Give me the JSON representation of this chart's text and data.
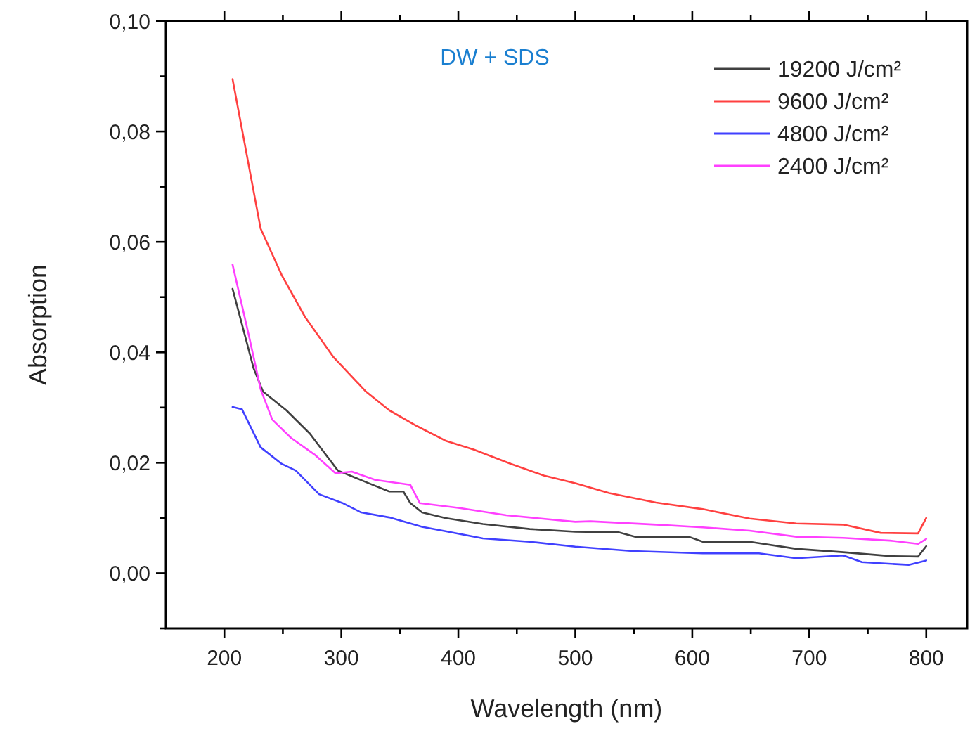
{
  "chart_data": {
    "type": "line",
    "title": "DW + SDS",
    "xlabel": "Wavelength (nm)",
    "ylabel": "Absorption",
    "xlim": [
      150,
      835
    ],
    "ylim": [
      -0.01,
      0.1
    ],
    "xticks": [
      200,
      {
        "value": 250,
        "label": null
      },
      300,
      {
        "value": 350,
        "label": null
      },
      400,
      {
        "value": 450,
        "label": null
      },
      500,
      {
        "value": 550,
        "label": null
      },
      600,
      {
        "value": 650,
        "label": null
      },
      700,
      {
        "value": 750,
        "label": null
      },
      800
    ],
    "yticks": [
      {
        "value": -0.01,
        "label": null
      },
      {
        "value": 0,
        "label": "0,00"
      },
      {
        "value": 0.01,
        "label": null
      },
      {
        "value": 0.02,
        "label": "0,02"
      },
      {
        "value": 0.03,
        "label": null
      },
      {
        "value": 0.04,
        "label": "0,04"
      },
      {
        "value": 0.05,
        "label": null
      },
      {
        "value": 0.06,
        "label": "0,06"
      },
      {
        "value": 0.07,
        "label": null
      },
      {
        "value": 0.08,
        "label": "0,08"
      },
      {
        "value": 0.09,
        "label": null
      },
      {
        "value": 0.1,
        "label": "0,10"
      }
    ],
    "grid": false,
    "legend": "top right",
    "marker": "none",
    "line_style": "solid",
    "series": [
      {
        "name": "19200 J/cm²",
        "color": "#404040",
        "x": [
          207,
          225,
          233,
          253,
          273,
          297,
          321,
          341,
          353,
          359,
          369,
          389,
          421,
          461,
          500,
          537,
          553,
          597,
          609,
          649,
          689,
          729,
          769,
          793,
          800
        ],
        "values": [
          0.0515,
          0.0371,
          0.0329,
          0.0295,
          0.0253,
          0.0186,
          0.0165,
          0.0148,
          0.0148,
          0.0127,
          0.011,
          0.01,
          0.0089,
          0.008,
          0.0075,
          0.0074,
          0.0065,
          0.0066,
          0.0057,
          0.0057,
          0.0044,
          0.0038,
          0.0031,
          0.003,
          0.0049
        ]
      },
      {
        "name": "9600 J/cm²",
        "color": "#ff4040",
        "x": [
          207,
          231,
          249,
          269,
          293,
          321,
          341,
          365,
          389,
          413,
          445,
          473,
          500,
          529,
          569,
          609,
          649,
          689,
          729,
          761,
          793,
          800
        ],
        "values": [
          0.0895,
          0.0624,
          0.054,
          0.0464,
          0.0392,
          0.0329,
          0.0295,
          0.0266,
          0.024,
          0.0224,
          0.0198,
          0.0177,
          0.0163,
          0.0145,
          0.0128,
          0.0116,
          0.0099,
          0.009,
          0.0088,
          0.0073,
          0.0072,
          0.01
        ]
      },
      {
        "name": "4800 J/cm²",
        "color": "#4040ff",
        "x": [
          207,
          215,
          231,
          249,
          261,
          281,
          301,
          317,
          341,
          369,
          389,
          421,
          461,
          500,
          549,
          609,
          657,
          689,
          729,
          745,
          785,
          800
        ],
        "values": [
          0.0301,
          0.0297,
          0.0228,
          0.0198,
          0.0186,
          0.0143,
          0.0127,
          0.011,
          0.0101,
          0.0084,
          0.0076,
          0.0063,
          0.0057,
          0.0048,
          0.004,
          0.0036,
          0.0036,
          0.0027,
          0.0032,
          0.002,
          0.0015,
          0.0023
        ]
      },
      {
        "name": "2400 J/cm²",
        "color": "#ff40ff",
        "x": [
          207,
          221,
          231,
          241,
          257,
          277,
          295,
          309,
          329,
          359,
          367,
          401,
          441,
          500,
          513,
          569,
          609,
          649,
          689,
          729,
          769,
          793,
          800
        ],
        "values": [
          0.0559,
          0.043,
          0.0333,
          0.0278,
          0.0245,
          0.0215,
          0.0181,
          0.0184,
          0.0169,
          0.016,
          0.0127,
          0.0118,
          0.0105,
          0.0093,
          0.0094,
          0.0088,
          0.0083,
          0.0077,
          0.0066,
          0.0064,
          0.0059,
          0.0053,
          0.0062
        ]
      }
    ]
  }
}
